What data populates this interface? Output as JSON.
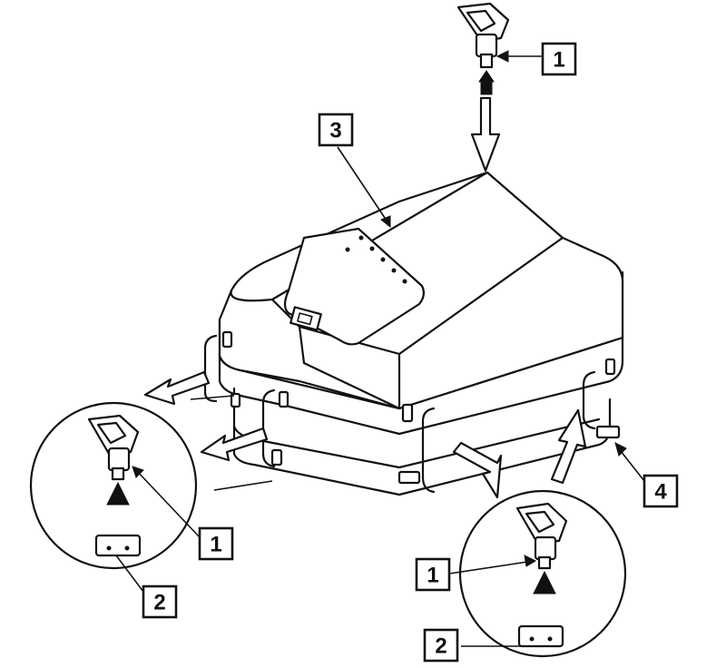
{
  "callouts": [
    {
      "label": "1"
    },
    {
      "label": "3"
    },
    {
      "label": "1"
    },
    {
      "label": "2"
    },
    {
      "label": "4"
    },
    {
      "label": "1"
    },
    {
      "label": "2"
    }
  ]
}
